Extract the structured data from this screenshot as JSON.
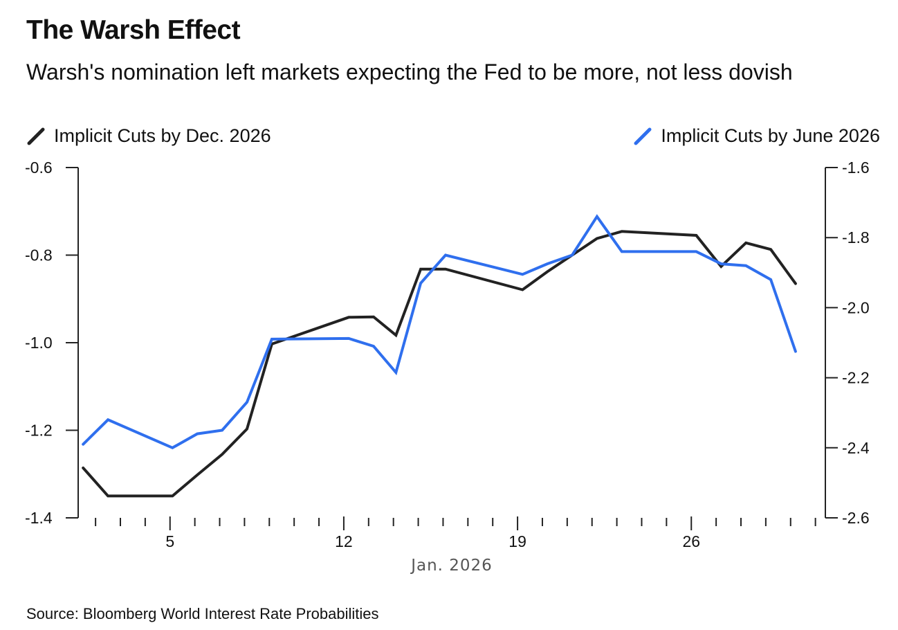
{
  "title": "The Warsh Effect",
  "subtitle": "Warsh's nomination left markets expecting the Fed to be more, not less dovish",
  "source": "Source: Bloomberg World Interest Rate Probabilities",
  "colors": {
    "series_dec": "#222222",
    "series_june": "#2f6fee",
    "axis": "#222222"
  },
  "chart_data": {
    "type": "line",
    "title": "The Warsh Effect",
    "xlabel": "Jan. 2026",
    "x_tick_labels": [
      "5",
      "12",
      "19",
      "26"
    ],
    "x_tick_days": [
      5,
      12,
      19,
      26
    ],
    "xlim": [
      1.3,
      31.4
    ],
    "left_axis": {
      "label": "Implicit Cuts by Dec. 2026",
      "ylim": [
        -1.4,
        -0.6
      ],
      "ticks": [
        -0.6,
        -0.8,
        -1.0,
        -1.2,
        -1.4
      ],
      "tick_labels": [
        "-0.6",
        "-0.8",
        "-1.0",
        "-1.2",
        "-1.4"
      ]
    },
    "right_axis": {
      "label": "Implicit Cuts by June 2026",
      "ylim": [
        -2.6,
        -1.6
      ],
      "ticks": [
        -1.6,
        -1.8,
        -2.0,
        -2.2,
        -2.4,
        -2.6
      ],
      "tick_labels": [
        "-1.6",
        "-1.8",
        "-2.0",
        "-2.2",
        "-2.4",
        "-2.6"
      ]
    },
    "series": [
      {
        "name": "Implicit Cuts by Dec. 2026",
        "axis": "left",
        "x": [
          1.5,
          2.5,
          5.1,
          6.1,
          7.1,
          8.1,
          9.1,
          12.2,
          13.2,
          14.1,
          15.1,
          16.1,
          19.2,
          20.2,
          21.2,
          22.2,
          23.2,
          26.2,
          27.2,
          28.2,
          29.2,
          30.2
        ],
        "values": [
          -1.286,
          -1.35,
          -1.35,
          -1.302,
          -1.255,
          -1.197,
          -1.003,
          -0.942,
          -0.941,
          -0.983,
          -0.832,
          -0.832,
          -0.879,
          -0.838,
          -0.8,
          -0.762,
          -0.746,
          -0.755,
          -0.826,
          -0.772,
          -0.787,
          -0.865
        ]
      },
      {
        "name": "Implicit Cuts by June 2026",
        "axis": "right",
        "x": [
          1.5,
          2.5,
          5.1,
          6.1,
          7.1,
          8.1,
          9.1,
          12.2,
          13.2,
          14.1,
          15.1,
          16.1,
          19.2,
          20.2,
          21.2,
          22.2,
          23.2,
          26.2,
          27.2,
          28.2,
          29.2,
          30.2
        ],
        "values": [
          -2.39,
          -2.32,
          -2.4,
          -2.36,
          -2.35,
          -2.27,
          -2.09,
          -2.088,
          -2.11,
          -2.185,
          -1.93,
          -1.85,
          -1.905,
          -1.875,
          -1.85,
          -1.74,
          -1.84,
          -1.84,
          -1.875,
          -1.88,
          -1.92,
          -2.125
        ]
      }
    ]
  }
}
